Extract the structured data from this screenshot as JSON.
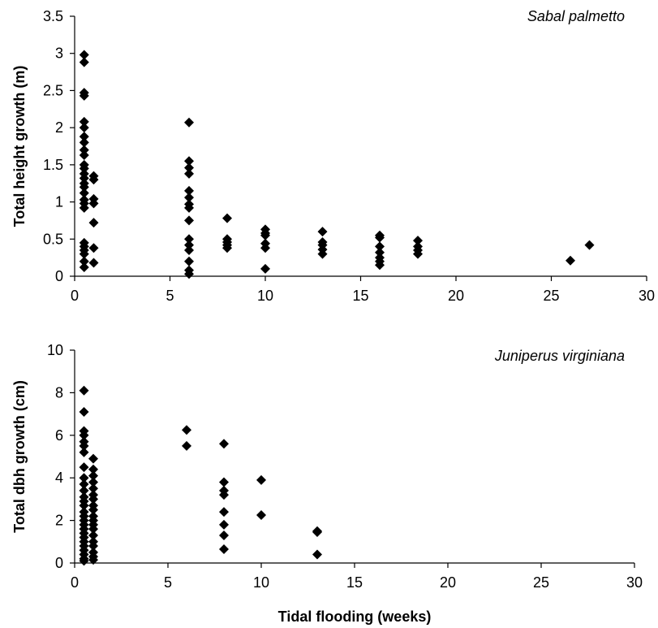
{
  "chart_data": [
    {
      "type": "scatter",
      "annotation": "Sabal palmetto",
      "xlabel": "",
      "ylabel": "Total height growth (m)",
      "xlim": [
        0,
        30
      ],
      "ylim": [
        0,
        3.5
      ],
      "xticks": [
        "0",
        "5",
        "10",
        "15",
        "20",
        "25",
        "30"
      ],
      "yticks": [
        "0",
        "0.5",
        "1",
        "1.5",
        "2",
        "2.5",
        "3",
        "3.5"
      ],
      "grid": false,
      "marker": "diamond",
      "color": "#000000",
      "points": [
        [
          0.5,
          2.98
        ],
        [
          0.5,
          2.88
        ],
        [
          0.5,
          2.47
        ],
        [
          0.5,
          2.43
        ],
        [
          0.5,
          2.08
        ],
        [
          0.5,
          2.0
        ],
        [
          0.5,
          1.88
        ],
        [
          0.5,
          1.8
        ],
        [
          0.5,
          1.7
        ],
        [
          0.5,
          1.63
        ],
        [
          0.5,
          1.5
        ],
        [
          0.5,
          1.45
        ],
        [
          0.5,
          1.38
        ],
        [
          0.5,
          1.32
        ],
        [
          0.5,
          1.25
        ],
        [
          0.5,
          1.2
        ],
        [
          0.5,
          1.12
        ],
        [
          0.5,
          1.03
        ],
        [
          0.5,
          0.98
        ],
        [
          0.5,
          0.92
        ],
        [
          0.5,
          0.45
        ],
        [
          0.5,
          0.4
        ],
        [
          0.5,
          0.35
        ],
        [
          0.5,
          0.3
        ],
        [
          0.5,
          0.2
        ],
        [
          0.5,
          0.12
        ],
        [
          1.0,
          1.35
        ],
        [
          1.0,
          1.3
        ],
        [
          1.0,
          1.04
        ],
        [
          1.0,
          0.98
        ],
        [
          1.0,
          0.72
        ],
        [
          1.0,
          0.38
        ],
        [
          1.0,
          0.18
        ],
        [
          6,
          2.07
        ],
        [
          6,
          1.55
        ],
        [
          6,
          1.46
        ],
        [
          6,
          1.38
        ],
        [
          6,
          1.15
        ],
        [
          6,
          1.06
        ],
        [
          6,
          0.97
        ],
        [
          6,
          0.92
        ],
        [
          6,
          0.75
        ],
        [
          6,
          0.5
        ],
        [
          6,
          0.42
        ],
        [
          6,
          0.35
        ],
        [
          6,
          0.2
        ],
        [
          6,
          0.08
        ],
        [
          6,
          0.03
        ],
        [
          8,
          0.78
        ],
        [
          8,
          0.5
        ],
        [
          8,
          0.46
        ],
        [
          8,
          0.42
        ],
        [
          8,
          0.38
        ],
        [
          10,
          0.63
        ],
        [
          10,
          0.58
        ],
        [
          10,
          0.55
        ],
        [
          10,
          0.44
        ],
        [
          10,
          0.38
        ],
        [
          10,
          0.1
        ],
        [
          13,
          0.6
        ],
        [
          13,
          0.46
        ],
        [
          13,
          0.42
        ],
        [
          13,
          0.36
        ],
        [
          13,
          0.3
        ],
        [
          16,
          0.55
        ],
        [
          16,
          0.52
        ],
        [
          16,
          0.4
        ],
        [
          16,
          0.32
        ],
        [
          16,
          0.25
        ],
        [
          16,
          0.2
        ],
        [
          16,
          0.15
        ],
        [
          18,
          0.48
        ],
        [
          18,
          0.4
        ],
        [
          18,
          0.35
        ],
        [
          18,
          0.3
        ],
        [
          26,
          0.21
        ],
        [
          27,
          0.42
        ]
      ]
    },
    {
      "type": "scatter",
      "annotation": "Juniperus virginiana",
      "xlabel": "Tidal flooding (weeks)",
      "ylabel": "Total dbh growth (cm)",
      "xlim": [
        0,
        30
      ],
      "ylim": [
        0,
        10
      ],
      "xticks": [
        "0",
        "5",
        "10",
        "15",
        "20",
        "25",
        "30"
      ],
      "yticks": [
        "0",
        "2",
        "4",
        "6",
        "8",
        "10"
      ],
      "grid": false,
      "marker": "diamond",
      "color": "#000000",
      "points": [
        [
          0.5,
          8.1
        ],
        [
          0.5,
          7.1
        ],
        [
          0.5,
          6.2
        ],
        [
          0.5,
          6.0
        ],
        [
          0.5,
          5.7
        ],
        [
          0.5,
          5.5
        ],
        [
          0.5,
          5.2
        ],
        [
          0.5,
          4.5
        ],
        [
          0.5,
          4.0
        ],
        [
          0.5,
          3.7
        ],
        [
          0.5,
          3.4
        ],
        [
          0.5,
          3.1
        ],
        [
          0.5,
          2.9
        ],
        [
          0.5,
          2.7
        ],
        [
          0.5,
          2.4
        ],
        [
          0.5,
          2.2
        ],
        [
          0.5,
          2.0
        ],
        [
          0.5,
          1.8
        ],
        [
          0.5,
          1.6
        ],
        [
          0.5,
          1.4
        ],
        [
          0.5,
          1.2
        ],
        [
          0.5,
          1.0
        ],
        [
          0.5,
          0.8
        ],
        [
          0.5,
          0.6
        ],
        [
          0.5,
          0.4
        ],
        [
          0.5,
          0.2
        ],
        [
          0.5,
          0.1
        ],
        [
          1.0,
          4.9
        ],
        [
          1.0,
          4.4
        ],
        [
          1.0,
          4.1
        ],
        [
          1.0,
          3.8
        ],
        [
          1.0,
          3.5
        ],
        [
          1.0,
          3.2
        ],
        [
          1.0,
          3.0
        ],
        [
          1.0,
          2.7
        ],
        [
          1.0,
          2.5
        ],
        [
          1.0,
          2.2
        ],
        [
          1.0,
          2.0
        ],
        [
          1.0,
          1.8
        ],
        [
          1.0,
          1.6
        ],
        [
          1.0,
          1.3
        ],
        [
          1.0,
          1.0
        ],
        [
          1.0,
          0.8
        ],
        [
          1.0,
          0.5
        ],
        [
          1.0,
          0.3
        ],
        [
          1.0,
          0.15
        ],
        [
          6,
          6.25
        ],
        [
          6,
          5.5
        ],
        [
          8,
          5.6
        ],
        [
          8,
          3.8
        ],
        [
          8,
          3.4
        ],
        [
          8,
          3.2
        ],
        [
          8,
          2.4
        ],
        [
          8,
          1.8
        ],
        [
          8,
          1.3
        ],
        [
          8,
          0.65
        ],
        [
          10,
          3.9
        ],
        [
          10,
          2.25
        ],
        [
          13,
          1.5
        ],
        [
          13,
          1.45
        ],
        [
          13,
          0.4
        ]
      ]
    }
  ]
}
